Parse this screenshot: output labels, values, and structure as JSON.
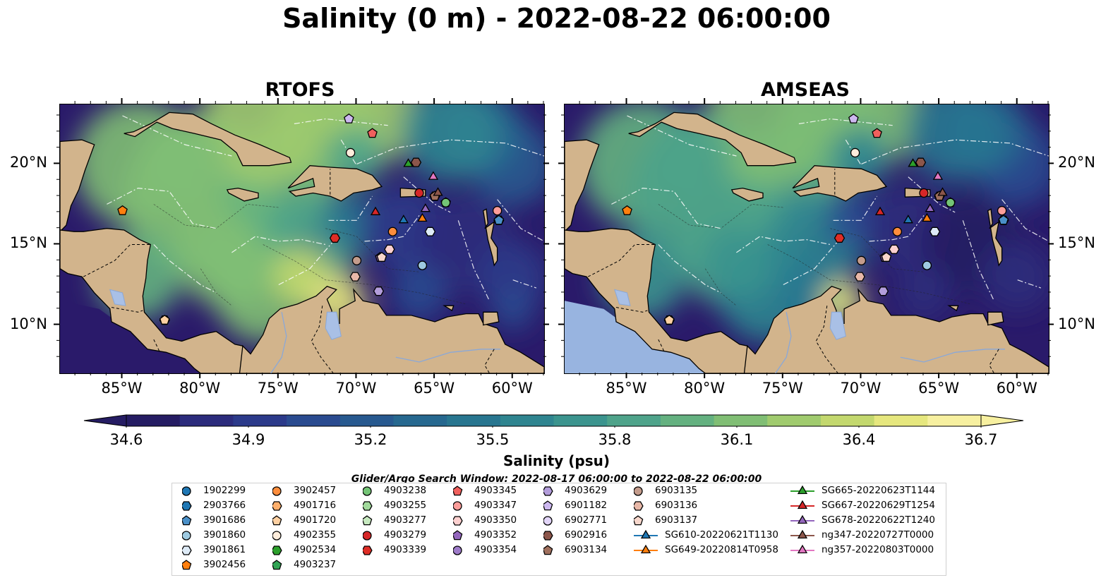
{
  "title": "Salinity (0 m) - 2022-08-22 06:00:00",
  "panels": [
    {
      "title": "RTOFS"
    },
    {
      "title": "AMSEAS"
    }
  ],
  "map_extent": {
    "lon_min": -89,
    "lon_max": -58,
    "lat_min": 7,
    "lat_max": 23.7
  },
  "lon_ticks": [
    "85°W",
    "80°W",
    "75°W",
    "70°W",
    "65°W",
    "60°W"
  ],
  "lat_ticks": [
    "20°N",
    "15°N",
    "10°N"
  ],
  "lon_tick_values": [
    -85,
    -80,
    -75,
    -70,
    -65,
    -60
  ],
  "lat_tick_values": [
    20,
    15,
    10
  ],
  "colors": {
    "land": "#d2b48c",
    "ocean_low": "#2a1a6a",
    "ocean_high": "#f5ef8a",
    "no_data": "#98b4e0"
  },
  "colorbar": {
    "label": "Salinity (psu)",
    "ticks": [
      "34.6",
      "34.9",
      "35.2",
      "35.5",
      "35.8",
      "36.1",
      "36.4",
      "36.7"
    ],
    "min": 34.6,
    "max": 36.7,
    "colormap": [
      "#251c63",
      "#2b2b7c",
      "#2b3a8a",
      "#2a4b90",
      "#27598f",
      "#26688f",
      "#287690",
      "#2f8590",
      "#3b948e",
      "#4ea38a",
      "#64b180",
      "#80be74",
      "#a0cb6e",
      "#c3d86e",
      "#e6e77e",
      "#f7f0a0"
    ]
  },
  "search_window": "Glider/Argo Search Window: 2022-08-17 06:00:00 to 2022-08-22 06:00:00",
  "legend": {
    "columns": [
      [
        {
          "label": "1902299",
          "marker": "circle",
          "color": "#1f77b4"
        },
        {
          "label": "2903766",
          "marker": "hexagon",
          "color": "#1f77b4"
        },
        {
          "label": "3901686",
          "marker": "pentagon",
          "color": "#4a90c8"
        },
        {
          "label": "3901860",
          "marker": "circle",
          "color": "#9ecae1"
        },
        {
          "label": "3901861",
          "marker": "hexagon",
          "color": "#deebf7"
        },
        {
          "label": "3902456",
          "marker": "pentagon",
          "color": "#ff7f0e"
        }
      ],
      [
        {
          "label": "3902457",
          "marker": "circle",
          "color": "#fd8d3c"
        },
        {
          "label": "4901716",
          "marker": "hexagon",
          "color": "#fdae6b"
        },
        {
          "label": "4901720",
          "marker": "pentagon",
          "color": "#fdd0a2"
        },
        {
          "label": "4902355",
          "marker": "circle",
          "color": "#feeddc"
        },
        {
          "label": "4902534",
          "marker": "hexagon",
          "color": "#2ca02c"
        },
        {
          "label": "4903237",
          "marker": "pentagon",
          "color": "#31a354"
        }
      ],
      [
        {
          "label": "4903238",
          "marker": "circle",
          "color": "#74c476"
        },
        {
          "label": "4903255",
          "marker": "hexagon",
          "color": "#a1d99b"
        },
        {
          "label": "4903277",
          "marker": "pentagon",
          "color": "#c7e9c0"
        },
        {
          "label": "4903279",
          "marker": "circle",
          "color": "#d62728"
        },
        {
          "label": "4903339",
          "marker": "hexagon",
          "color": "#de2d26"
        }
      ],
      [
        {
          "label": "4903345",
          "marker": "pentagon",
          "color": "#f0605d"
        },
        {
          "label": "4903347",
          "marker": "circle",
          "color": "#fc9d9a"
        },
        {
          "label": "4903350",
          "marker": "hexagon",
          "color": "#fcd0cf"
        },
        {
          "label": "4903352",
          "marker": "pentagon",
          "color": "#9467bd"
        },
        {
          "label": "4903354",
          "marker": "circle",
          "color": "#9e7bc9"
        }
      ],
      [
        {
          "label": "4903629",
          "marker": "hexagon",
          "color": "#b39ddb"
        },
        {
          "label": "6901182",
          "marker": "pentagon",
          "color": "#cdb8f0"
        },
        {
          "label": "6902771",
          "marker": "circle",
          "color": "#e2d5f8"
        },
        {
          "label": "6902916",
          "marker": "hexagon",
          "color": "#8c564b"
        },
        {
          "label": "6903134",
          "marker": "pentagon",
          "color": "#a0705e"
        }
      ],
      [
        {
          "label": "6903135",
          "marker": "circle",
          "color": "#c49c8c"
        },
        {
          "label": "6903136",
          "marker": "hexagon",
          "color": "#e8b8a8"
        },
        {
          "label": "6903137",
          "marker": "pentagon",
          "color": "#f7d7cc"
        },
        {
          "label": "SG610-20220621T1130",
          "marker": "triangle-line",
          "color": "#1f77b4"
        },
        {
          "label": "SG649-20220814T0958",
          "marker": "triangle-line",
          "color": "#ff7f0e"
        }
      ],
      [
        {
          "label": "SG665-20220623T1144",
          "marker": "triangle-line",
          "color": "#2ca02c"
        },
        {
          "label": "SG667-20220629T1254",
          "marker": "triangle-line",
          "color": "#d62728"
        },
        {
          "label": "SG678-20220622T1240",
          "marker": "triangle-line",
          "color": "#9467bd"
        },
        {
          "label": "ng347-20220727T0000",
          "marker": "triangle-line",
          "color": "#8c564b"
        },
        {
          "label": "ng357-20220803T0000",
          "marker": "triangle-line",
          "color": "#e377c2"
        }
      ]
    ]
  },
  "platforms": [
    {
      "id": "1902299",
      "lon": -65.8,
      "lat": 13.7
    },
    {
      "id": "2903766",
      "lon": -60.9,
      "lat": 16.5
    },
    {
      "id": "3901686",
      "lon": -60.9,
      "lat": 16.5
    },
    {
      "id": "3901860",
      "lon": -65.8,
      "lat": 13.7
    },
    {
      "id": "3901861",
      "lon": -65.3,
      "lat": 15.8
    },
    {
      "id": "3902456",
      "lon": -85.0,
      "lat": 17.1
    },
    {
      "id": "3902457",
      "lon": -67.7,
      "lat": 15.8
    },
    {
      "id": "4901716",
      "lon": -82.3,
      "lat": 10.3
    },
    {
      "id": "4901720",
      "lon": -82.3,
      "lat": 10.3
    },
    {
      "id": "4902355",
      "lon": -70.4,
      "lat": 20.7
    },
    {
      "id": "4902534",
      "lon": -65.0,
      "lat": 18.0
    },
    {
      "id": "4903237",
      "lon": -64.3,
      "lat": 17.6
    },
    {
      "id": "4903238",
      "lon": -64.3,
      "lat": 17.6
    },
    {
      "id": "4903279",
      "lon": -66.0,
      "lat": 18.2
    },
    {
      "id": "4903339",
      "lon": -71.4,
      "lat": 15.4
    },
    {
      "id": "4903345",
      "lon": -69.0,
      "lat": 21.9
    },
    {
      "id": "4903347",
      "lon": -61.0,
      "lat": 17.1
    },
    {
      "id": "4903350",
      "lon": -67.9,
      "lat": 14.7
    },
    {
      "id": "4903352",
      "lon": -68.5,
      "lat": 14.2
    },
    {
      "id": "4903354",
      "lon": -68.6,
      "lat": 12.1
    },
    {
      "id": "4903629",
      "lon": -68.6,
      "lat": 12.1
    },
    {
      "id": "6901182",
      "lon": -70.5,
      "lat": 22.8
    },
    {
      "id": "6902916",
      "lon": -66.2,
      "lat": 20.1
    },
    {
      "id": "6903134",
      "lon": -65.0,
      "lat": 18.0
    },
    {
      "id": "6903135",
      "lon": -70.0,
      "lat": 14.0
    },
    {
      "id": "6903136",
      "lon": -70.1,
      "lat": 13.0
    },
    {
      "id": "6903137",
      "lon": -68.4,
      "lat": 14.2
    },
    {
      "id": "SG610-20220621T1130",
      "lon": -67.0,
      "lat": 16.5
    },
    {
      "id": "SG649-20220814T0958",
      "lon": -65.8,
      "lat": 16.6
    },
    {
      "id": "SG665-20220623T1144",
      "lon": -66.7,
      "lat": 20.0
    },
    {
      "id": "SG667-20220629T1254",
      "lon": -68.8,
      "lat": 17.0
    },
    {
      "id": "SG678-20220622T1240",
      "lon": -65.6,
      "lat": 17.2
    },
    {
      "id": "ng347-20220727T0000",
      "lon": -64.8,
      "lat": 18.2
    },
    {
      "id": "ng357-20220803T0000",
      "lon": -65.1,
      "lat": 19.2
    }
  ]
}
